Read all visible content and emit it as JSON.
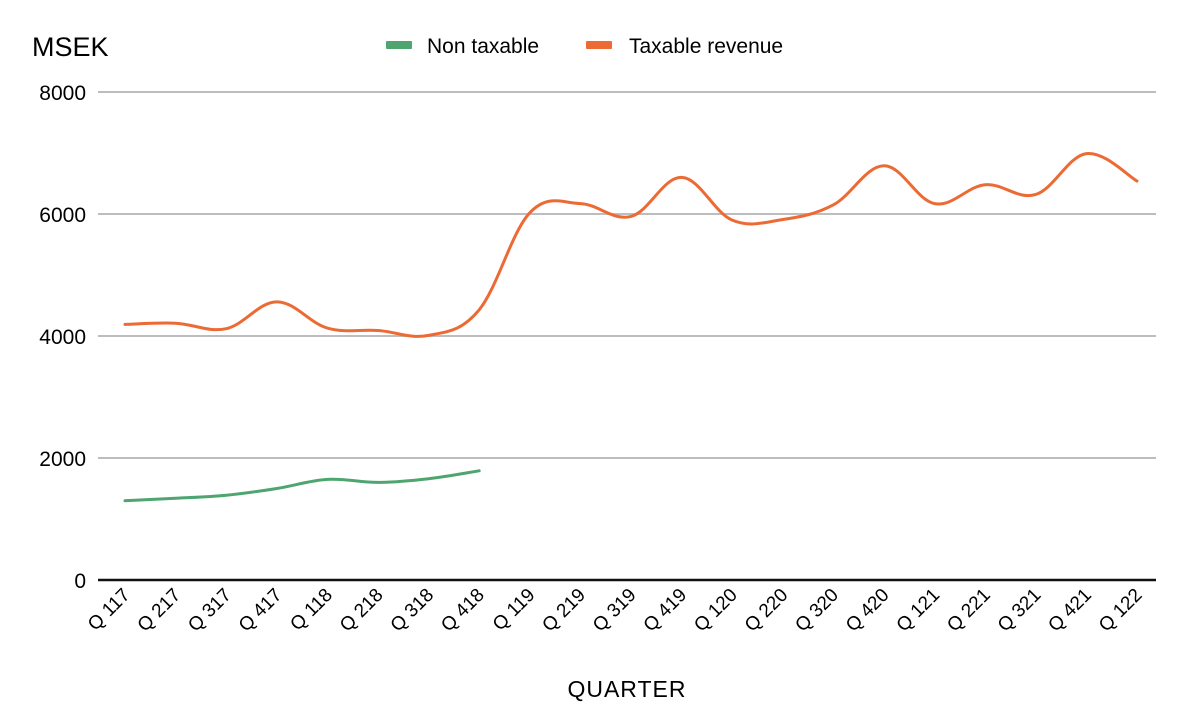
{
  "chart_data": {
    "type": "line",
    "ylabel": "MSEK",
    "xlabel": "QUARTER",
    "ylim": [
      0,
      8000
    ],
    "yticks": [
      0,
      2000,
      4000,
      6000,
      8000
    ],
    "ytick_labels": [
      "0",
      "2000",
      "4000",
      "6000",
      "8000"
    ],
    "grid": true,
    "legend_position": "top",
    "categories": [
      "Q 117",
      "Q 217",
      "Q 317",
      "Q 417",
      "Q 118",
      "Q 218",
      "Q 318",
      "Q 418",
      "Q 119",
      "Q 219",
      "Q 319",
      "Q 419",
      "Q 120",
      "Q 220",
      "Q 320",
      "Q 420",
      "Q 121",
      "Q 221",
      "Q 321",
      "Q 421",
      "Q 122"
    ],
    "series": [
      {
        "name": "Non taxable",
        "color": "#4ea56f",
        "values": [
          1300,
          1340,
          1390,
          1500,
          1650,
          1600,
          1660,
          1790,
          null,
          null,
          null,
          null,
          null,
          null,
          null,
          null,
          null,
          null,
          null,
          null,
          null
        ]
      },
      {
        "name": "Taxable revenue",
        "color": "#ec6a34",
        "values": [
          4190,
          4210,
          4120,
          4560,
          4130,
          4090,
          4010,
          4430,
          6020,
          6170,
          5960,
          6600,
          5900,
          5910,
          6150,
          6790,
          6170,
          6480,
          6320,
          6990,
          6540
        ]
      }
    ]
  }
}
